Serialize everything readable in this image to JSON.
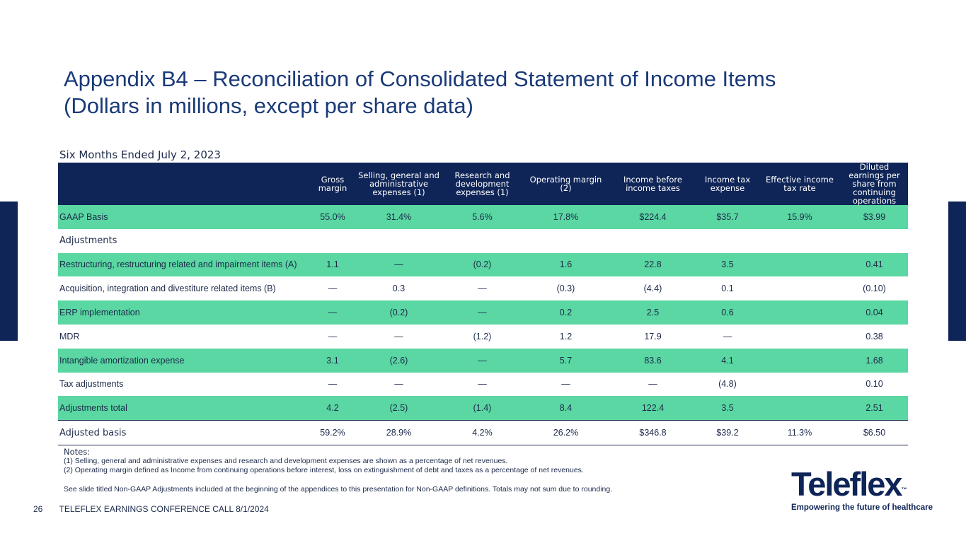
{
  "slide": {
    "title_line1": "Appendix B4 – Reconciliation of Consolidated Statement of Income Items",
    "title_line2": "(Dollars in millions, except per share data)",
    "period": "Six Months Ended July 2, 2023"
  },
  "table": {
    "columns": [
      "",
      "Gross margin",
      "Selling, general and administrative expenses (1)",
      "Research and development expenses (1)",
      "Operating margin (2)",
      "Income before income taxes",
      "Income tax expense",
      "Effective income tax rate",
      "Diluted earnings per share from continuing operations"
    ],
    "rows": [
      {
        "label": "GAAP Basis",
        "values": [
          "55.0%",
          "31.4%",
          "5.6%",
          "17.8%",
          "$224.4",
          "$35.7",
          "15.9%",
          "$3.99"
        ]
      },
      {
        "label": "Adjustments",
        "values": [
          "",
          "",
          "",
          "",
          "",
          "",
          "",
          ""
        ]
      },
      {
        "label": "Restructuring, restructuring related and impairment items (A)",
        "values": [
          "1.1",
          "—",
          "(0.2)",
          "1.6",
          "22.8",
          "3.5",
          "",
          "0.41"
        ]
      },
      {
        "label": "Acquisition, integration and divestiture related items (B)",
        "values": [
          "—",
          "0.3",
          "—",
          "(0.3)",
          "(4.4)",
          "0.1",
          "",
          "(0.10)"
        ]
      },
      {
        "label": "ERP implementation",
        "values": [
          "—",
          "(0.2)",
          "—",
          "0.2",
          "2.5",
          "0.6",
          "",
          "0.04"
        ]
      },
      {
        "label": "MDR",
        "values": [
          "—",
          "—",
          "(1.2)",
          "1.2",
          "17.9",
          "—",
          "",
          "0.38"
        ]
      },
      {
        "label": "Intangible amortization expense",
        "values": [
          "3.1",
          "(2.6)",
          "—",
          "5.7",
          "83.6",
          "4.1",
          "",
          "1.68"
        ]
      },
      {
        "label": "Tax adjustments",
        "values": [
          "—",
          "—",
          "—",
          "—",
          "—",
          "(4.8)",
          "",
          "0.10"
        ]
      },
      {
        "label": "Adjustments total",
        "values": [
          "4.2",
          "(2.5)",
          "(1.4)",
          "8.4",
          "122.4",
          "3.5",
          "",
          "2.51"
        ]
      },
      {
        "label": "Adjusted basis",
        "values": [
          "59.2%",
          "28.9%",
          "4.2%",
          "26.2%",
          "$346.8",
          "$39.2",
          "11.3%",
          "$6.50"
        ]
      }
    ]
  },
  "notes": {
    "title": "Notes:",
    "note1": "(1) Selling, general and administrative expenses and research and development expenses are shown as a percentage of net revenues.",
    "note2": "(2) Operating margin defined as Income from continuing operations before interest, loss on extinguishment of debt and taxes as a percentage of net revenues.",
    "note3": "See slide titled Non-GAAP Adjustments included at the beginning of the appendices to this presentation for Non-GAAP definitions. Totals may not sum due to rounding."
  },
  "footer": {
    "page_number": "26",
    "text": "TELEFLEX EARNINGS CONFERENCE CALL 8/1/2024"
  },
  "logo": {
    "wordmark": "Teleflex",
    "trademark": "™",
    "tagline": "Empowering the future of healthcare"
  },
  "colors": {
    "navy": "#0f2557",
    "title_blue": "#1a3a78",
    "green_row": "#5ad7a2"
  }
}
